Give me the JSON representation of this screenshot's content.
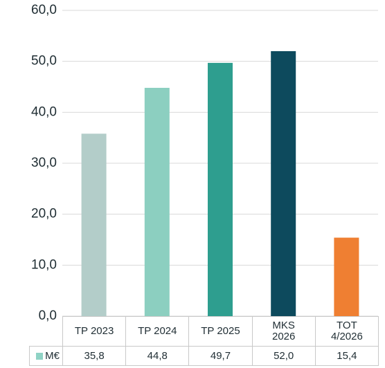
{
  "chart_data": {
    "type": "bar",
    "categories": [
      "TP 2023",
      "TP 2024",
      "TP 2025",
      "MKS\n2026",
      "TOT\n4/2026"
    ],
    "series": [
      {
        "name": "M€",
        "color": "#8fd3c5",
        "values": [
          35.8,
          44.8,
          49.7,
          52.0,
          15.4
        ],
        "value_labels": [
          "35,8",
          "44,8",
          "49,7",
          "52,0",
          "15,4"
        ]
      }
    ],
    "bar_colors": [
      "#b3cdc9",
      "#8ccfc0",
      "#2e9e8f",
      "#0d4a5d",
      "#ef7f32"
    ],
    "ylim": [
      0,
      60
    ],
    "yticks": [
      {
        "value": 0,
        "label": "0,0"
      },
      {
        "value": 10,
        "label": "10,0"
      },
      {
        "value": 20,
        "label": "20,0"
      },
      {
        "value": 30,
        "label": "30,0"
      },
      {
        "value": 40,
        "label": "40,0"
      },
      {
        "value": 50,
        "label": "50,0"
      },
      {
        "value": 60,
        "label": "60,0"
      }
    ],
    "grid": true
  }
}
